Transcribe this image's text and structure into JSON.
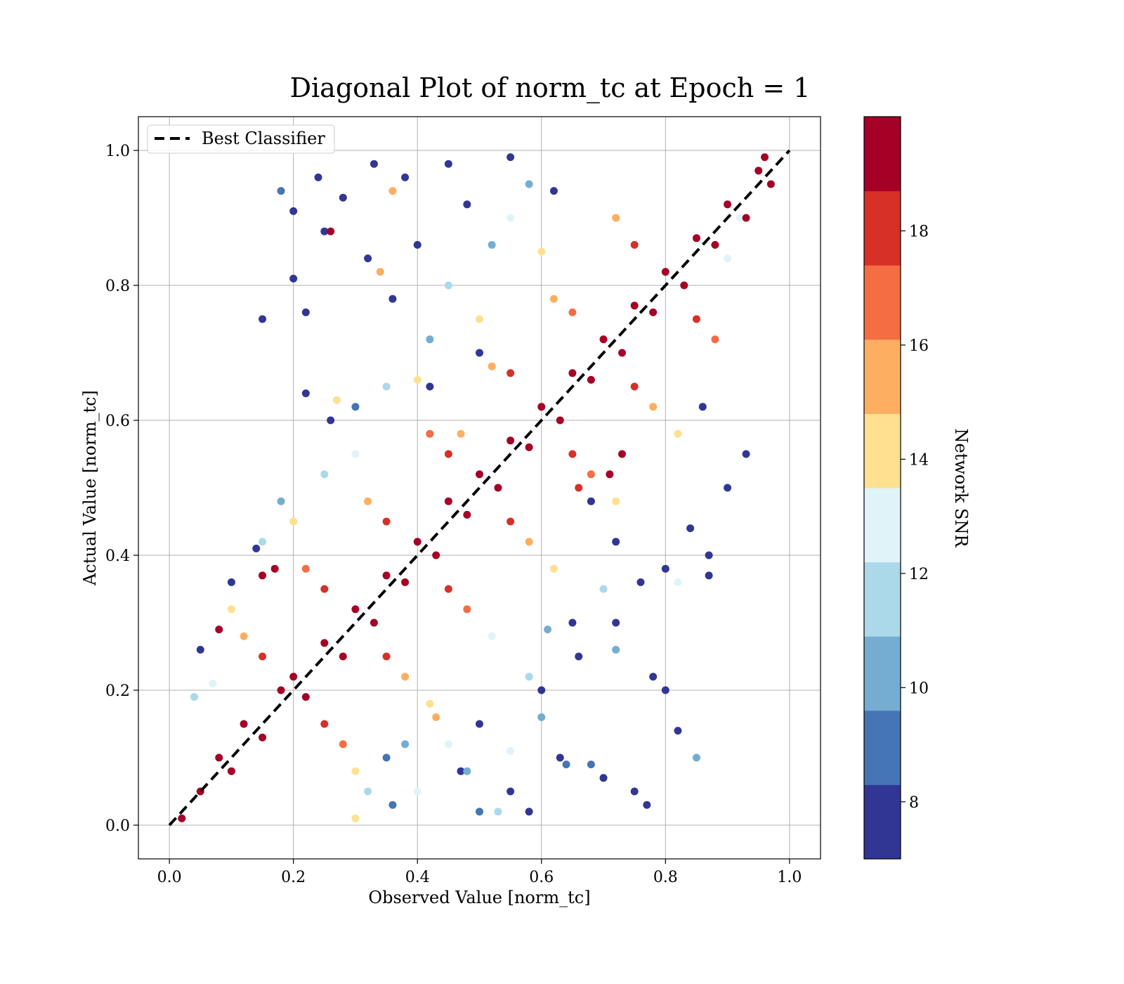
{
  "chart_data": {
    "type": "scatter",
    "title": "Diagonal Plot of norm_tc at Epoch = 1",
    "xlabel": "Observed Value [norm_tc]",
    "ylabel": "Actual Value [norm_tc]",
    "xlim": [
      -0.05,
      1.05
    ],
    "ylim": [
      -0.05,
      1.05
    ],
    "xticks": [
      "0.0",
      "0.2",
      "0.4",
      "0.6",
      "0.8",
      "1.0"
    ],
    "yticks": [
      "0.0",
      "0.2",
      "0.4",
      "0.6",
      "0.8",
      "1.0"
    ],
    "grid": true,
    "legend": {
      "position": "upper-left",
      "entries": [
        {
          "label": "Best Classifier",
          "style": "dashed",
          "color": "#000000"
        }
      ]
    },
    "reference_line": {
      "label": "Best Classifier",
      "x": [
        0.0,
        1.0
      ],
      "y": [
        0.0,
        1.0
      ]
    },
    "colorbar": {
      "label": "Network SNR",
      "range": [
        7,
        20
      ],
      "ticks": [
        "8",
        "10",
        "12",
        "14",
        "16",
        "18"
      ],
      "tick_values": [
        8,
        10,
        12,
        14,
        16,
        18
      ],
      "colors": [
        "#313695",
        "#4575b4",
        "#74add1",
        "#abd9e9",
        "#e0f3f8",
        "#fee090",
        "#fdae61",
        "#f46d43",
        "#d73027",
        "#a50026"
      ],
      "color_bounds": [
        7,
        8.3,
        9.6,
        10.9,
        12.2,
        13.5,
        14.8,
        16.1,
        17.4,
        18.7,
        20
      ]
    },
    "points_description": "Dense band of high-SNR points (about 19-20) along the diagonal y = x; lower-SNR points (7-14) scatter farther from the diagonal.",
    "points": [
      [
        0.02,
        0.01,
        19.5
      ],
      [
        0.05,
        0.05,
        19.6
      ],
      [
        0.08,
        0.1,
        19.4
      ],
      [
        0.1,
        0.08,
        19.7
      ],
      [
        0.12,
        0.15,
        19.5
      ],
      [
        0.15,
        0.13,
        19.6
      ],
      [
        0.18,
        0.2,
        19.3
      ],
      [
        0.2,
        0.22,
        19.5
      ],
      [
        0.22,
        0.19,
        19.8
      ],
      [
        0.25,
        0.27,
        19.4
      ],
      [
        0.28,
        0.25,
        19.6
      ],
      [
        0.3,
        0.32,
        19.5
      ],
      [
        0.33,
        0.3,
        19.7
      ],
      [
        0.35,
        0.37,
        19.2
      ],
      [
        0.38,
        0.36,
        19.6
      ],
      [
        0.4,
        0.42,
        19.5
      ],
      [
        0.43,
        0.4,
        19.4
      ],
      [
        0.45,
        0.48,
        19.6
      ],
      [
        0.48,
        0.46,
        19.7
      ],
      [
        0.5,
        0.52,
        19.3
      ],
      [
        0.53,
        0.5,
        19.6
      ],
      [
        0.55,
        0.57,
        19.5
      ],
      [
        0.58,
        0.56,
        19.8
      ],
      [
        0.6,
        0.62,
        19.4
      ],
      [
        0.63,
        0.6,
        19.6
      ],
      [
        0.65,
        0.67,
        19.5
      ],
      [
        0.68,
        0.66,
        19.7
      ],
      [
        0.7,
        0.72,
        19.3
      ],
      [
        0.73,
        0.7,
        19.6
      ],
      [
        0.75,
        0.77,
        19.5
      ],
      [
        0.78,
        0.76,
        19.4
      ],
      [
        0.8,
        0.82,
        19.6
      ],
      [
        0.83,
        0.8,
        19.7
      ],
      [
        0.85,
        0.87,
        19.5
      ],
      [
        0.88,
        0.86,
        19.6
      ],
      [
        0.9,
        0.92,
        19.3
      ],
      [
        0.93,
        0.9,
        19.6
      ],
      [
        0.95,
        0.97,
        19.5
      ],
      [
        0.97,
        0.95,
        19.7
      ],
      [
        0.96,
        0.99,
        19.4
      ],
      [
        0.15,
        0.25,
        18.0
      ],
      [
        0.25,
        0.35,
        17.5
      ],
      [
        0.35,
        0.45,
        18.2
      ],
      [
        0.45,
        0.55,
        17.8
      ],
      [
        0.55,
        0.67,
        18.1
      ],
      [
        0.65,
        0.76,
        17.2
      ],
      [
        0.75,
        0.86,
        18.4
      ],
      [
        0.25,
        0.15,
        18.3
      ],
      [
        0.35,
        0.25,
        17.6
      ],
      [
        0.45,
        0.35,
        18.0
      ],
      [
        0.55,
        0.45,
        17.4
      ],
      [
        0.65,
        0.55,
        18.2
      ],
      [
        0.75,
        0.65,
        17.7
      ],
      [
        0.85,
        0.75,
        18.0
      ],
      [
        0.12,
        0.28,
        15.5
      ],
      [
        0.22,
        0.38,
        16.3
      ],
      [
        0.32,
        0.48,
        15.2
      ],
      [
        0.42,
        0.58,
        16.5
      ],
      [
        0.52,
        0.68,
        15.8
      ],
      [
        0.62,
        0.78,
        16.0
      ],
      [
        0.72,
        0.9,
        15.4
      ],
      [
        0.28,
        0.12,
        16.2
      ],
      [
        0.38,
        0.22,
        15.6
      ],
      [
        0.48,
        0.32,
        16.4
      ],
      [
        0.58,
        0.42,
        15.3
      ],
      [
        0.68,
        0.52,
        16.1
      ],
      [
        0.78,
        0.62,
        15.7
      ],
      [
        0.88,
        0.72,
        16.3
      ],
      [
        0.1,
        0.32,
        13.5
      ],
      [
        0.2,
        0.45,
        14.2
      ],
      [
        0.3,
        0.55,
        13.3
      ],
      [
        0.4,
        0.66,
        14.0
      ],
      [
        0.5,
        0.75,
        13.6
      ],
      [
        0.6,
        0.85,
        14.3
      ],
      [
        0.3,
        0.08,
        13.8
      ],
      [
        0.42,
        0.18,
        14.1
      ],
      [
        0.52,
        0.28,
        13.4
      ],
      [
        0.62,
        0.38,
        14.0
      ],
      [
        0.72,
        0.48,
        13.7
      ],
      [
        0.82,
        0.58,
        14.2
      ],
      [
        0.15,
        0.42,
        11.5
      ],
      [
        0.25,
        0.52,
        12.0
      ],
      [
        0.35,
        0.65,
        11.2
      ],
      [
        0.45,
        0.8,
        11.8
      ],
      [
        0.55,
        0.9,
        12.5
      ],
      [
        0.32,
        0.05,
        11.4
      ],
      [
        0.45,
        0.12,
        12.2
      ],
      [
        0.58,
        0.22,
        11.6
      ],
      [
        0.7,
        0.35,
        11.9
      ],
      [
        0.85,
        0.1,
        10.2
      ],
      [
        0.38,
        0.12,
        10.5
      ],
      [
        0.48,
        0.08,
        9.8
      ],
      [
        0.6,
        0.16,
        10.3
      ],
      [
        0.72,
        0.26,
        9.6
      ],
      [
        0.18,
        0.48,
        10.2
      ],
      [
        0.3,
        0.62,
        9.5
      ],
      [
        0.42,
        0.72,
        10.4
      ],
      [
        0.52,
        0.86,
        9.7
      ],
      [
        0.58,
        0.95,
        10.0
      ],
      [
        0.15,
        0.75,
        8.2
      ],
      [
        0.18,
        0.94,
        9.1
      ],
      [
        0.2,
        0.91,
        7.6
      ],
      [
        0.2,
        0.81,
        7.5
      ],
      [
        0.24,
        0.96,
        7.8
      ],
      [
        0.28,
        0.93,
        7.4
      ],
      [
        0.33,
        0.98,
        7.6
      ],
      [
        0.4,
        0.86,
        7.5
      ],
      [
        0.48,
        0.92,
        7.7
      ],
      [
        0.5,
        0.7,
        7.3
      ],
      [
        0.55,
        0.99,
        7.5
      ],
      [
        0.62,
        0.94,
        7.6
      ],
      [
        0.22,
        0.76,
        7.4
      ],
      [
        0.26,
        0.6,
        7.5
      ],
      [
        0.36,
        0.78,
        7.6
      ],
      [
        0.42,
        0.65,
        7.3
      ],
      [
        0.47,
        0.08,
        7.6
      ],
      [
        0.5,
        0.15,
        7.4
      ],
      [
        0.55,
        0.05,
        7.5
      ],
      [
        0.6,
        0.2,
        7.6
      ],
      [
        0.63,
        0.1,
        7.3
      ],
      [
        0.66,
        0.25,
        7.5
      ],
      [
        0.7,
        0.07,
        7.6
      ],
      [
        0.72,
        0.3,
        7.4
      ],
      [
        0.75,
        0.05,
        7.5
      ],
      [
        0.77,
        0.03,
        7.6
      ],
      [
        0.78,
        0.22,
        7.5
      ],
      [
        0.8,
        0.38,
        7.4
      ],
      [
        0.82,
        0.14,
        7.3
      ],
      [
        0.87,
        0.4,
        7.5
      ],
      [
        0.87,
        0.37,
        7.6
      ],
      [
        0.8,
        0.2,
        7.4
      ],
      [
        0.84,
        0.44,
        7.5
      ],
      [
        0.9,
        0.5,
        7.6
      ],
      [
        0.93,
        0.55,
        7.4
      ],
      [
        0.68,
        0.48,
        7.6
      ],
      [
        0.72,
        0.42,
        7.3
      ],
      [
        0.76,
        0.36,
        7.5
      ],
      [
        0.65,
        0.3,
        7.4
      ],
      [
        0.58,
        0.02,
        7.6
      ],
      [
        0.86,
        0.62,
        7.5
      ],
      [
        0.22,
        0.64,
        7.6
      ],
      [
        0.25,
        0.88,
        7.5
      ],
      [
        0.45,
        0.98,
        7.4
      ],
      [
        0.32,
        0.84,
        7.3
      ],
      [
        0.38,
        0.96,
        7.6
      ],
      [
        0.47,
        0.58,
        14.8
      ],
      [
        0.1,
        0.36,
        7.5
      ],
      [
        0.14,
        0.41,
        7.4
      ],
      [
        0.05,
        0.26,
        7.6
      ],
      [
        0.08,
        0.29,
        19.2
      ],
      [
        0.15,
        0.37,
        19.1
      ],
      [
        0.17,
        0.38,
        19.3
      ],
      [
        0.26,
        0.88,
        19.0
      ],
      [
        0.34,
        0.82,
        15.8
      ],
      [
        0.36,
        0.94,
        15.5
      ],
      [
        0.27,
        0.63,
        14.5
      ],
      [
        0.07,
        0.21,
        13.0
      ],
      [
        0.04,
        0.19,
        11.8
      ],
      [
        0.92,
        0.9,
        12.8
      ],
      [
        0.9,
        0.84,
        12.5
      ],
      [
        0.82,
        0.36,
        12.3
      ],
      [
        0.68,
        0.09,
        8.5
      ],
      [
        0.55,
        0.11,
        13.0
      ],
      [
        0.5,
        0.02,
        8.4
      ],
      [
        0.64,
        0.09,
        9.2
      ],
      [
        0.43,
        0.16,
        16.0
      ],
      [
        0.4,
        0.05,
        12.5
      ],
      [
        0.35,
        0.1,
        9.0
      ],
      [
        0.3,
        0.01,
        13.8
      ],
      [
        0.36,
        0.03,
        8.6
      ],
      [
        0.71,
        0.52,
        19.0
      ],
      [
        0.73,
        0.55,
        19.2
      ],
      [
        0.66,
        0.5,
        18.5
      ],
      [
        0.61,
        0.29,
        10.8
      ],
      [
        0.53,
        0.02,
        12.0
      ]
    ]
  }
}
